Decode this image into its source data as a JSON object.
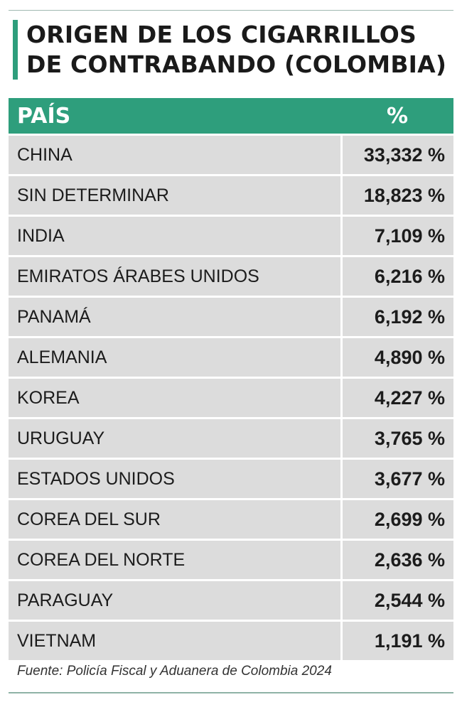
{
  "chart_data": {
    "type": "table",
    "title": "ORIGEN DE LOS CIGARRILLOS DE CONTRABANDO (COLOMBIA)",
    "columns": [
      "PAÍS",
      "%"
    ],
    "rows": [
      {
        "country": "CHINA",
        "value": "33,332 %"
      },
      {
        "country": "SIN DETERMINAR",
        "value": "18,823 %"
      },
      {
        "country": "INDIA",
        "value": "7,109 %"
      },
      {
        "country": "EMIRATOS ÁRABES UNIDOS",
        "value": "6,216 %"
      },
      {
        "country": "PANAMÁ",
        "value": "6,192 %"
      },
      {
        "country": "ALEMANIA",
        "value": "4,890 %"
      },
      {
        "country": "KOREA",
        "value": "4,227 %"
      },
      {
        "country": "URUGUAY",
        "value": "3,765 %"
      },
      {
        "country": "ESTADOS UNIDOS",
        "value": "3,677 %"
      },
      {
        "country": "COREA DEL SUR",
        "value": "2,699 %"
      },
      {
        "country": "COREA DEL NORTE",
        "value": "2,636 %"
      },
      {
        "country": "PARAGUAY",
        "value": "2,544 %"
      },
      {
        "country": "VIETNAM",
        "value": "1,191 %"
      }
    ],
    "source": "Fuente: Policía Fiscal y Aduanera de Colombia 2024"
  },
  "colors": {
    "accent": "#2e9e7c",
    "row_background": "#dcdcdc",
    "header_text": "#ffffff"
  }
}
